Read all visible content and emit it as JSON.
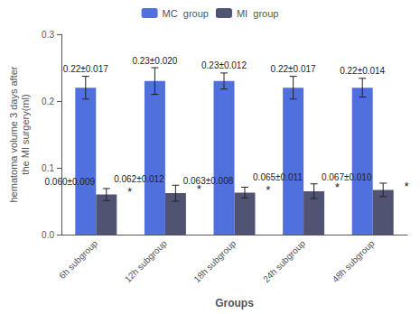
{
  "chart_data": {
    "type": "bar",
    "categories": [
      "6h subgroup",
      "12h subgroup",
      "18h subgroup",
      "24h subgroup",
      "48h subgroup"
    ],
    "series": [
      {
        "name": "MC  group",
        "values": [
          0.22,
          0.23,
          0.23,
          0.22,
          0.22
        ],
        "errors": [
          0.017,
          0.02,
          0.012,
          0.017,
          0.014
        ],
        "value_labels": [
          "0.22±0.017",
          "0.23±0.020",
          "0.23±0.012",
          "0.22±0.017",
          "0.22±0.014"
        ]
      },
      {
        "name": "MI  group",
        "values": [
          0.06,
          0.062,
          0.063,
          0.065,
          0.067
        ],
        "errors": [
          0.009,
          0.012,
          0.008,
          0.011,
          0.01
        ],
        "value_labels": [
          "0.060±0.009",
          "0.062±0.012",
          "0.063±0.008",
          "0.065±0.011",
          "0.067±0.010"
        ],
        "annotation": "*"
      }
    ],
    "ylabel": "hematoma volume 3 days after\nthe MI surgery(ml)",
    "xlabel": "Groups",
    "ylim": [
      0.0,
      0.3
    ],
    "yticks": [
      {
        "value": 0.0,
        "label": "0.0"
      },
      0.1,
      0.2,
      0.3
    ],
    "grid": false,
    "legend": "top",
    "data_labels": true
  }
}
